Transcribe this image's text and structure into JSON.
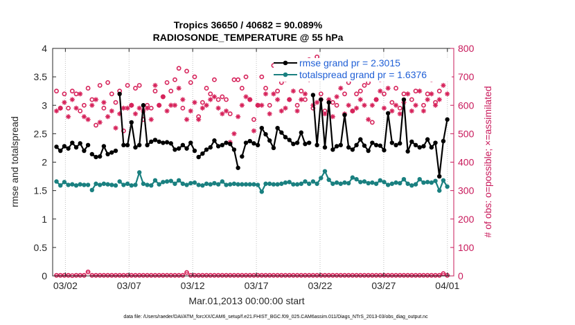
{
  "chart_data": {
    "type": "line",
    "title_line1": "Tropics 36650 / 40682 = 90.089%",
    "title_line2": "RADIOSONDE_TEMPERATURE @ 55 hPa",
    "xlabel": "Mar.01,2013 00:00:00 start",
    "ylabel_left": "rmse and totalspread",
    "ylabel_right": "# of obs: o=possible; ×=assimilated",
    "ylim_left": [
      0,
      4
    ],
    "ylim_right": [
      0,
      800
    ],
    "xlim": [
      0,
      31.5
    ],
    "left_ticks": [
      "0",
      "0.5",
      "1",
      "1.5",
      "2",
      "2.5",
      "3",
      "3.5",
      "4"
    ],
    "right_ticks": [
      "0",
      "100",
      "200",
      "300",
      "400",
      "500",
      "600",
      "700",
      "800"
    ],
    "x_ticks": [
      {
        "value": 1,
        "label": "03/02"
      },
      {
        "value": 6,
        "label": "03/07"
      },
      {
        "value": 11,
        "label": "03/12"
      },
      {
        "value": 16,
        "label": "03/17"
      },
      {
        "value": 21,
        "label": "03/22"
      },
      {
        "value": 26,
        "label": "03/27"
      },
      {
        "value": 31,
        "label": "04/01"
      }
    ],
    "colors": {
      "rmse": "#000000",
      "spread": "#1a8080",
      "obs": "#d6225a",
      "axis_right": "#c8185a",
      "legend_text": "#1f5fd6"
    },
    "series": [
      {
        "name": "rmse grand pr = 2.3015",
        "values": [
          2.27,
          2.2,
          2.28,
          2.24,
          2.34,
          2.26,
          2.33,
          2.2,
          2.3,
          2.14,
          2.09,
          2.1,
          2.28,
          2.14,
          2.17,
          2.2,
          3.2,
          2.3,
          2.3,
          2.7,
          2.26,
          2.3,
          3.0,
          2.3,
          2.36,
          2.39,
          2.36,
          2.34,
          2.35,
          2.33,
          2.22,
          2.24,
          2.3,
          2.24,
          2.34,
          2.2,
          2.09,
          2.15,
          2.22,
          2.26,
          2.38,
          2.28,
          2.3,
          2.34,
          2.32,
          2.22,
          1.9,
          2.1,
          2.34,
          2.37,
          2.33,
          2.3,
          2.6,
          2.49,
          2.38,
          2.25,
          2.6,
          2.52,
          2.44,
          2.39,
          2.32,
          2.34,
          2.52,
          2.32,
          2.34,
          3.18,
          2.3,
          3.1,
          2.26,
          3.05,
          2.22,
          2.28,
          2.3,
          2.83,
          2.26,
          2.22,
          2.3,
          2.4,
          2.29,
          2.2,
          2.34,
          2.3,
          2.29,
          2.21,
          2.86,
          2.34,
          2.3,
          2.33,
          3.1,
          2.19,
          2.36,
          2.3,
          2.26,
          2.28,
          2.4,
          2.26,
          2.34,
          1.75,
          2.37,
          2.75
        ]
      },
      {
        "name": "totalspread grand pr = 1.6376",
        "values": [
          1.66,
          1.59,
          1.65,
          1.6,
          1.61,
          1.59,
          1.61,
          1.6,
          1.6,
          1.51,
          1.62,
          1.6,
          1.62,
          1.61,
          1.6,
          1.59,
          1.66,
          1.6,
          1.62,
          1.59,
          1.6,
          1.82,
          1.62,
          1.6,
          1.59,
          1.68,
          1.61,
          1.65,
          1.66,
          1.67,
          1.62,
          1.68,
          1.62,
          1.6,
          1.63,
          1.64,
          1.6,
          1.59,
          1.62,
          1.61,
          1.63,
          1.61,
          1.66,
          1.6,
          1.61,
          1.62,
          1.61,
          1.61,
          1.61,
          1.61,
          1.61,
          1.6,
          1.48,
          1.62,
          1.62,
          1.61,
          1.61,
          1.62,
          1.64,
          1.65,
          1.61,
          1.61,
          1.62,
          1.66,
          1.62,
          1.66,
          1.62,
          1.72,
          1.84,
          1.69,
          1.62,
          1.64,
          1.62,
          1.64,
          1.63,
          1.73,
          1.7,
          1.65,
          1.66,
          1.63,
          1.64,
          1.62,
          1.68,
          1.65,
          1.6,
          1.62,
          1.64,
          1.63,
          1.7,
          1.62,
          1.59,
          1.61,
          1.7,
          1.64,
          1.65,
          1.64,
          1.67,
          1.5,
          1.68,
          1.57
        ]
      },
      {
        "name": "obs possible",
        "values": [
          650,
          590,
          640,
          590,
          650,
          640,
          580,
          600,
          660,
          620,
          530,
          670,
          590,
          680,
          640,
          610,
          650,
          510,
          670,
          600,
          660,
          670,
          550,
          600,
          590,
          650,
          600,
          630,
          680,
          650,
          690,
          730,
          590,
          720,
          680,
          700,
          560,
          610,
          660,
          640,
          690,
          620,
          630,
          620,
          570,
          690,
          690,
          660,
          700,
          620,
          550,
          600,
          700,
          660,
          600,
          740,
          650,
          680,
          690,
          620,
          710,
          600,
          650,
          620,
          760,
          590,
          770,
          640,
          580,
          740,
          610,
          600,
          700,
          640,
          680,
          580,
          640,
          650,
          670,
          680,
          540,
          620,
          690,
          640,
          700,
          610,
          660,
          590,
          640,
          710,
          620,
          650,
          710,
          600,
          640,
          690,
          610,
          650,
          720,
          710
        ]
      },
      {
        "name": "obs assimilated",
        "values": [
          580,
          590,
          610,
          560,
          620,
          590,
          640,
          560,
          550,
          600,
          620,
          540,
          610,
          560,
          580,
          520,
          570,
          590,
          590,
          600,
          570,
          590,
          580,
          590,
          550,
          670,
          600,
          630,
          580,
          600,
          600,
          660,
          620,
          550,
          580,
          610,
          550,
          590,
          600,
          620,
          630,
          590,
          570,
          580,
          470,
          500,
          560,
          600,
          630,
          620,
          510,
          600,
          600,
          640,
          570,
          640,
          620,
          580,
          590,
          620,
          650,
          580,
          620,
          640,
          690,
          600,
          610,
          620,
          570,
          620,
          560,
          630,
          660,
          570,
          600,
          580,
          590,
          620,
          600,
          550,
          600,
          620,
          650,
          590,
          660,
          580,
          600,
          570,
          610,
          640,
          580,
          600,
          650,
          580,
          620,
          640,
          600,
          620,
          670,
          640
        ]
      },
      {
        "name": "obs near zero",
        "values": [
          2,
          2,
          2,
          2,
          1,
          2,
          2,
          2,
          14,
          2,
          2,
          2,
          2,
          2,
          2,
          2,
          2,
          2,
          2,
          2,
          2,
          2,
          2,
          2,
          2,
          2,
          2,
          2,
          2,
          2,
          2,
          2,
          2,
          12,
          2,
          2,
          2,
          2,
          2,
          2,
          2,
          2,
          2,
          2,
          2,
          2,
          2,
          2,
          2,
          2,
          2,
          2,
          2,
          2,
          2,
          2,
          2,
          2,
          2,
          2,
          2,
          2,
          2,
          2,
          2,
          2,
          2,
          2,
          2,
          2,
          2,
          2,
          2,
          2,
          2,
          2,
          2,
          2,
          2,
          2,
          2,
          2,
          2,
          2,
          2,
          2,
          2,
          2,
          2,
          2,
          2,
          2,
          2,
          2,
          2,
          2,
          2,
          2,
          8,
          2
        ]
      }
    ],
    "footer": "data file: /Users/raeder/DAI/ATM_forcXX/CAM6_setup/f.e21.FHIST_BGC.f09_025.CAM6assim.011/Diags_NTrS_2013-03/obs_diag_output.nc"
  }
}
